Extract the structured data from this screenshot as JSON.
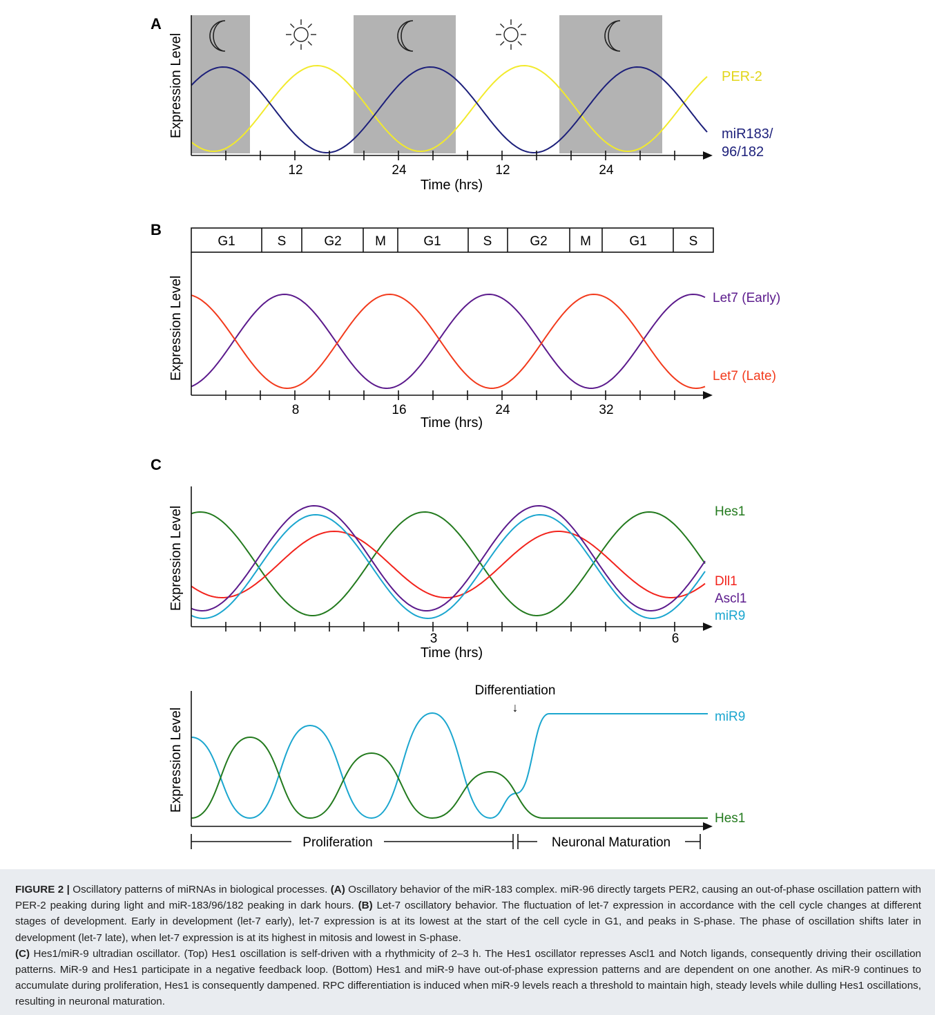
{
  "panels": {
    "A": {
      "letter": "A",
      "ylabel": "Expression Level",
      "xlabel": "Time (hrs)",
      "tick_labels": [
        "12",
        "24",
        "12",
        "24"
      ],
      "series_labels": {
        "per2": "PER-2",
        "mir183_line1": "miR183/",
        "mir183_line2": "96/182"
      },
      "colors": {
        "per2": "#f2ea2c",
        "mir183": "#1c1f7a",
        "shade": "#b3b3b3"
      },
      "icons": [
        "moon-icon",
        "sun-icon",
        "moon-icon",
        "sun-icon",
        "moon-icon"
      ]
    },
    "B": {
      "letter": "B",
      "ylabel": "Expression Level",
      "xlabel": "Time (hrs)",
      "tick_labels": [
        "8",
        "16",
        "24",
        "32"
      ],
      "phases": [
        "G1",
        "S",
        "G2",
        "M",
        "G1",
        "S",
        "G2",
        "M",
        "G1",
        "S"
      ],
      "series_labels": {
        "early": "Let7 (Early)",
        "late": "Let7 (Late)"
      },
      "colors": {
        "early": "#5b1a8c",
        "late": "#f23a1c"
      }
    },
    "C_top": {
      "letter": "C",
      "ylabel": "Expression Level",
      "xlabel": "Time (hrs)",
      "tick_labels": [
        "3",
        "6"
      ],
      "series_labels": {
        "hes1": "Hes1",
        "dll1": "Dll1",
        "ascl1": "Ascl1",
        "mir9": "miR9"
      },
      "colors": {
        "hes1": "#237a1e",
        "dll1": "#f2231c",
        "ascl1": "#5b1a8c",
        "mir9": "#1ba6cf"
      }
    },
    "C_bottom": {
      "ylabel": "Expression Level",
      "annotation": "Differentiation",
      "arrow_glyph": "↓",
      "series_labels": {
        "mir9": "miR9",
        "hes1": "Hes1"
      },
      "phase_labels": {
        "proliferation": "Proliferation",
        "maturation": "Neuronal Maturation"
      },
      "colors": {
        "hes1": "#237a1e",
        "mir9": "#1ba6cf"
      }
    }
  },
  "caption": {
    "figure_label": "FIGURE 2 |",
    "intro": " Oscillatory patterns of miRNAs in biological processes. ",
    "a_label": "(A)",
    "a_text": " Oscillatory behavior of the miR-183 complex. miR-96 directly targets PER2, causing an out-of-phase oscillation pattern with PER-2 peaking during light and miR-183/96/182 peaking in dark hours. ",
    "b_label": "(B)",
    "b_text": " Let-7 oscillatory behavior. The fluctuation of let-7 expression in accordance with the cell cycle changes at different stages of development. Early in development (let-7 early), let-7 expression is at its lowest at the start of the cell cycle in G1, and peaks in S-phase. The phase of oscillation shifts later in development (let-7 late), when let-7 expression is at its highest in mitosis and lowest in S-phase.",
    "c_label": "(C)",
    "c_text": " Hes1/miR-9 ultradian oscillator. (Top) Hes1 oscillation is self-driven with a rhythmicity of 2–3 h. The Hes1 oscillator represses Ascl1 and Notch ligands, consequently driving their oscillation patterns. MiR-9 and Hes1 participate in a negative feedback loop. (Bottom) Hes1 and miR-9 have out-of-phase expression patterns and are dependent on one another. As miR-9 continues to accumulate during proliferation, Hes1 is consequently dampened. RPC differentiation is induced when miR-9 levels reach a threshold to maintain high, steady levels while dulling Hes1 oscillations, resulting in neuronal maturation."
  }
}
